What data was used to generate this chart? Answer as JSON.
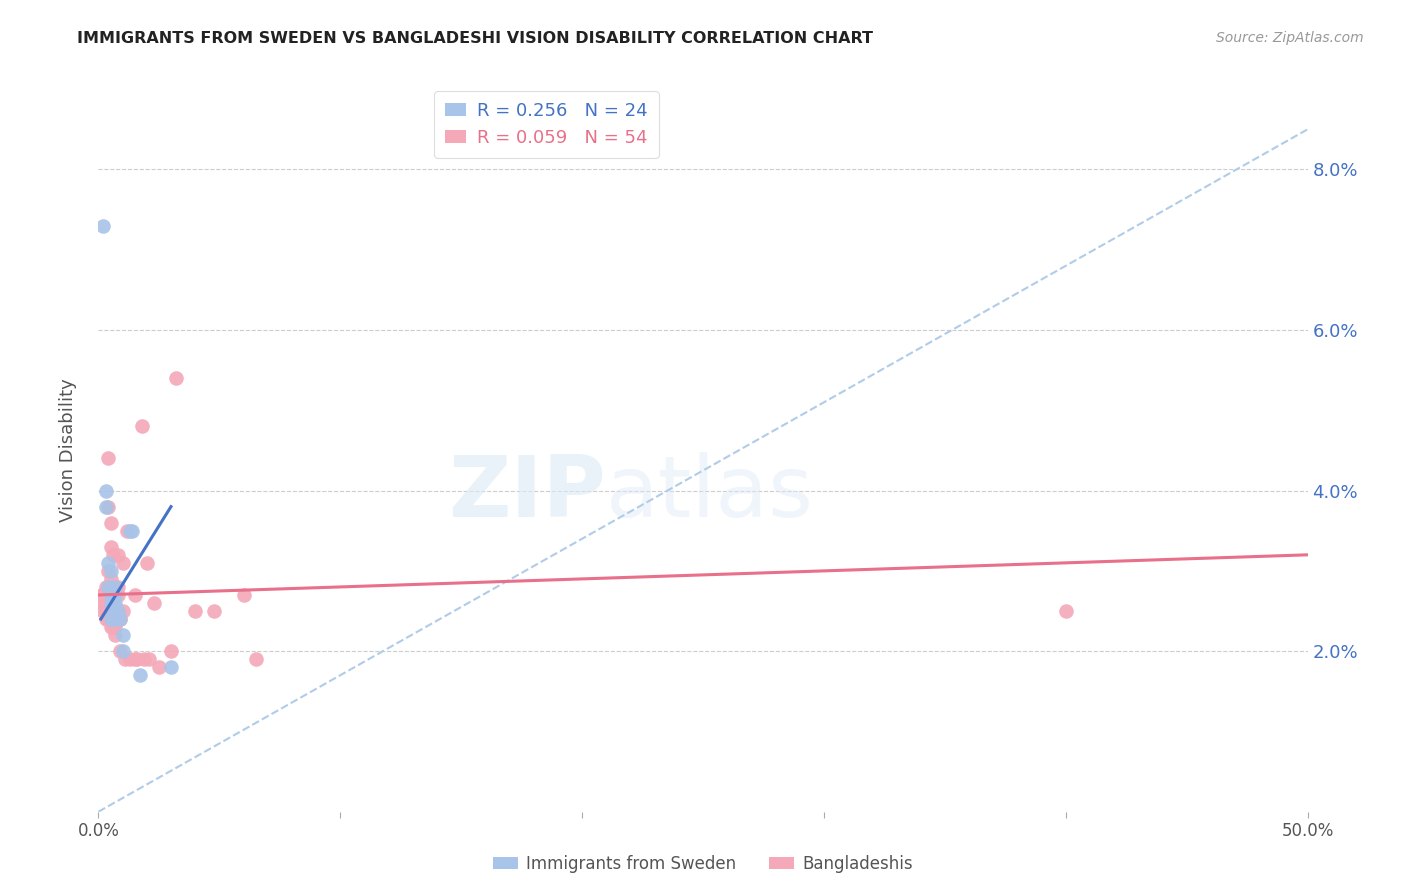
{
  "title": "IMMIGRANTS FROM SWEDEN VS BANGLADESHI VISION DISABILITY CORRELATION CHART",
  "source": "Source: ZipAtlas.com",
  "ylabel": "Vision Disability",
  "xlim": [
    0.0,
    0.5
  ],
  "ylim": [
    0.0,
    0.09
  ],
  "yticks": [
    0.02,
    0.04,
    0.06,
    0.08
  ],
  "ytick_labels": [
    "2.0%",
    "4.0%",
    "6.0%",
    "8.0%"
  ],
  "legend_blue_r": "R = 0.256",
  "legend_blue_n": "N = 24",
  "legend_pink_r": "R = 0.059",
  "legend_pink_n": "N = 54",
  "blue_color": "#a8c4e8",
  "pink_color": "#f4a8b8",
  "blue_line_color": "#4472c4",
  "pink_line_color": "#e8708a",
  "dashed_line_color": "#b0cce8",
  "sweden_points": [
    [
      0.002,
      0.073
    ],
    [
      0.003,
      0.04
    ],
    [
      0.003,
      0.038
    ],
    [
      0.004,
      0.031
    ],
    [
      0.004,
      0.028
    ],
    [
      0.005,
      0.03
    ],
    [
      0.005,
      0.027
    ],
    [
      0.005,
      0.026
    ],
    [
      0.005,
      0.024
    ],
    [
      0.006,
      0.026
    ],
    [
      0.006,
      0.025
    ],
    [
      0.006,
      0.024
    ],
    [
      0.007,
      0.028
    ],
    [
      0.007,
      0.027
    ],
    [
      0.007,
      0.026
    ],
    [
      0.007,
      0.024
    ],
    [
      0.008,
      0.025
    ],
    [
      0.009,
      0.024
    ],
    [
      0.01,
      0.022
    ],
    [
      0.01,
      0.02
    ],
    [
      0.013,
      0.035
    ],
    [
      0.014,
      0.035
    ],
    [
      0.017,
      0.017
    ],
    [
      0.03,
      0.018
    ]
  ],
  "bangladesh_points": [
    [
      0.001,
      0.027
    ],
    [
      0.002,
      0.027
    ],
    [
      0.002,
      0.026
    ],
    [
      0.002,
      0.025
    ],
    [
      0.003,
      0.028
    ],
    [
      0.003,
      0.026
    ],
    [
      0.003,
      0.025
    ],
    [
      0.003,
      0.024
    ],
    [
      0.004,
      0.044
    ],
    [
      0.004,
      0.038
    ],
    [
      0.004,
      0.03
    ],
    [
      0.004,
      0.027
    ],
    [
      0.004,
      0.026
    ],
    [
      0.004,
      0.025
    ],
    [
      0.004,
      0.024
    ],
    [
      0.005,
      0.036
    ],
    [
      0.005,
      0.033
    ],
    [
      0.005,
      0.029
    ],
    [
      0.005,
      0.027
    ],
    [
      0.005,
      0.025
    ],
    [
      0.005,
      0.023
    ],
    [
      0.006,
      0.032
    ],
    [
      0.006,
      0.027
    ],
    [
      0.006,
      0.025
    ],
    [
      0.006,
      0.023
    ],
    [
      0.007,
      0.028
    ],
    [
      0.007,
      0.023
    ],
    [
      0.007,
      0.022
    ],
    [
      0.008,
      0.032
    ],
    [
      0.008,
      0.028
    ],
    [
      0.008,
      0.027
    ],
    [
      0.009,
      0.024
    ],
    [
      0.009,
      0.02
    ],
    [
      0.01,
      0.031
    ],
    [
      0.01,
      0.025
    ],
    [
      0.011,
      0.019
    ],
    [
      0.012,
      0.035
    ],
    [
      0.013,
      0.019
    ],
    [
      0.015,
      0.027
    ],
    [
      0.015,
      0.019
    ],
    [
      0.016,
      0.019
    ],
    [
      0.018,
      0.048
    ],
    [
      0.019,
      0.019
    ],
    [
      0.02,
      0.031
    ],
    [
      0.021,
      0.019
    ],
    [
      0.023,
      0.026
    ],
    [
      0.025,
      0.018
    ],
    [
      0.03,
      0.02
    ],
    [
      0.032,
      0.054
    ],
    [
      0.04,
      0.025
    ],
    [
      0.048,
      0.025
    ],
    [
      0.06,
      0.027
    ],
    [
      0.065,
      0.019
    ],
    [
      0.4,
      0.025
    ]
  ],
  "blue_line_x": [
    0.001,
    0.03
  ],
  "blue_line_y": [
    0.024,
    0.038
  ],
  "pink_line_x": [
    0.0,
    0.5
  ],
  "pink_line_y": [
    0.027,
    0.032
  ],
  "dash_line_x": [
    0.0,
    0.5
  ],
  "dash_line_y": [
    0.0,
    0.085
  ]
}
